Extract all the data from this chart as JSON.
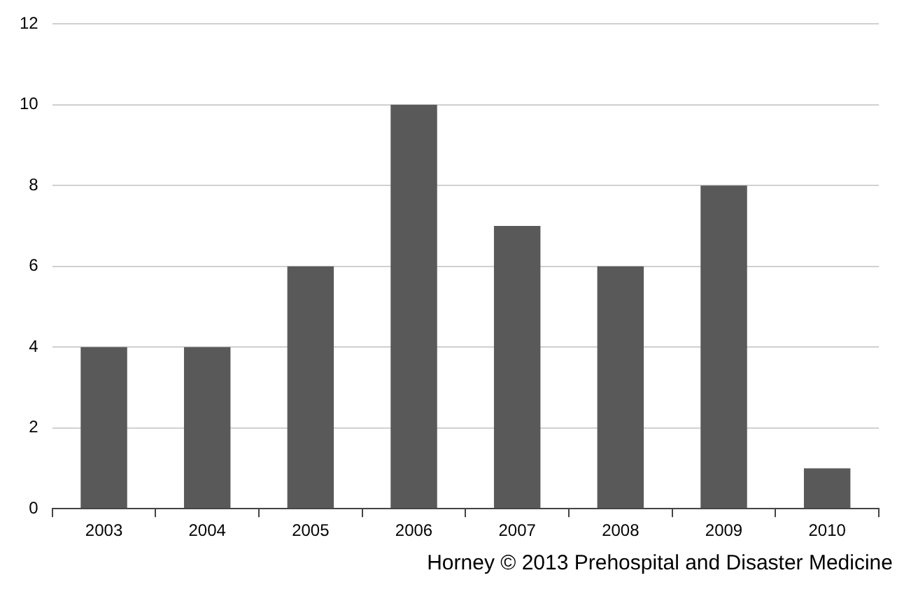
{
  "chart_data": {
    "type": "bar",
    "categories": [
      "2003",
      "2004",
      "2005",
      "2006",
      "2007",
      "2008",
      "2009",
      "2010"
    ],
    "values": [
      4,
      4,
      6,
      10,
      7,
      6,
      8,
      1
    ],
    "color": "#595959",
    "ylim": [
      0,
      12
    ],
    "yticks": [
      0,
      2,
      4,
      6,
      8,
      10,
      12
    ],
    "grid": "y",
    "annotations": [
      "Horney © 2013 Prehospital and Disaster Medicine"
    ]
  }
}
